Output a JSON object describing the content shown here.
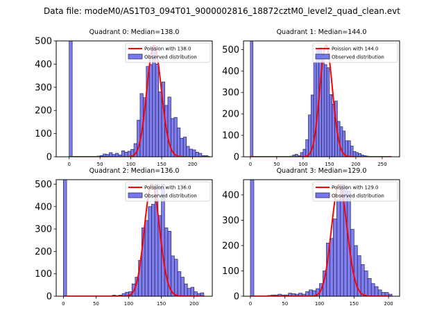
{
  "figure": {
    "suptitle": "Data file: modeM0/AS1T03_094T01_9000002816_18872cztM0_level2_quad_clean.evt"
  },
  "colors": {
    "bar_fill": "#7777ee",
    "bar_edge": "#222255",
    "poisson_line": "#ff0000",
    "axes": "#000000"
  },
  "chart_data": [
    {
      "type": "bar",
      "title": "Quadrant 0: Median=138.0",
      "median": 138.0,
      "xlabel": "",
      "ylabel": "",
      "xlim": [
        -21,
        232
      ],
      "ylim": [
        0,
        500
      ],
      "xticks": [
        0,
        50,
        100,
        150,
        200
      ],
      "yticks": [
        0,
        100,
        200,
        300,
        400,
        500
      ],
      "bin_width": 5,
      "bins": [
        0,
        45,
        50,
        55,
        60,
        65,
        70,
        75,
        80,
        85,
        90,
        95,
        100,
        105,
        110,
        115,
        120,
        125,
        130,
        135,
        140,
        145,
        150,
        155,
        160,
        165,
        170,
        175,
        180,
        185,
        190,
        195,
        200,
        205,
        210,
        215,
        220
      ],
      "counts": [
        600,
        3,
        5,
        12,
        10,
        18,
        10,
        15,
        8,
        26,
        20,
        24,
        32,
        57,
        158,
        273,
        255,
        390,
        398,
        470,
        400,
        280,
        323,
        222,
        258,
        165,
        170,
        125,
        80,
        85,
        45,
        33,
        30,
        20,
        15,
        5,
        5
      ],
      "legend": [
        "Poission with 138.0",
        "Observed distribution"
      ],
      "legend_position": "top-right",
      "poisson_mean": 138.0,
      "poisson_scale": 480,
      "poisson_xmax": 228
    },
    {
      "type": "bar",
      "title": "Quadrant 1: Median=144.0",
      "median": 144.0,
      "xlabel": "",
      "ylabel": "",
      "xlim": [
        -13,
        283
      ],
      "ylim": [
        0,
        540
      ],
      "xticks": [
        0,
        50,
        100,
        150,
        200,
        250
      ],
      "yticks": [
        0,
        100,
        200,
        300,
        400,
        500
      ],
      "bin_width": 5,
      "bins": [
        0,
        75,
        80,
        85,
        90,
        95,
        100,
        105,
        110,
        115,
        120,
        125,
        130,
        135,
        140,
        145,
        150,
        155,
        160,
        165,
        170,
        175,
        180,
        185,
        190,
        195,
        200,
        205,
        210,
        215,
        220,
        225,
        230
      ],
      "counts": [
        600,
        3,
        8,
        12,
        5,
        20,
        35,
        80,
        195,
        288,
        440,
        500,
        510,
        480,
        430,
        415,
        290,
        245,
        260,
        165,
        140,
        120,
        75,
        75,
        50,
        25,
        20,
        15,
        8,
        5,
        3,
        2,
        2
      ],
      "legend": [
        "Poission with 144.0",
        "Observed distribution"
      ],
      "legend_position": "top-right",
      "poisson_mean": 144.0,
      "poisson_scale": 520,
      "poisson_xmax": 268
    },
    {
      "type": "bar",
      "title": "Quadrant 2: Median=136.0",
      "median": 136.0,
      "xlabel": "",
      "ylabel": "",
      "xlim": [
        -11,
        228
      ],
      "ylim": [
        0,
        520
      ],
      "xticks": [
        0,
        50,
        100,
        150,
        200
      ],
      "yticks": [
        0,
        100,
        200,
        300,
        400,
        500
      ],
      "bin_width": 5,
      "bins": [
        0,
        75,
        80,
        85,
        90,
        95,
        100,
        105,
        110,
        115,
        120,
        125,
        130,
        135,
        140,
        145,
        150,
        155,
        160,
        165,
        170,
        175,
        180,
        185,
        190,
        195,
        200,
        205,
        210
      ],
      "counts": [
        600,
        5,
        3,
        5,
        12,
        18,
        20,
        55,
        85,
        160,
        305,
        338,
        400,
        410,
        500,
        360,
        500,
        305,
        290,
        180,
        165,
        110,
        85,
        55,
        35,
        40,
        20,
        12,
        15
      ],
      "legend": [
        "Poission with 136.0",
        "Observed distribution"
      ],
      "legend_position": "top-right",
      "poisson_mean": 136.0,
      "poisson_scale": 500,
      "poisson_xmax": 216
    },
    {
      "type": "bar",
      "title": "Quadrant 3: Median=129.0",
      "median": 129.0,
      "xlabel": "",
      "ylabel": "",
      "xlim": [
        -10,
        216
      ],
      "ylim": [
        0,
        460
      ],
      "xticks": [
        0,
        50,
        100,
        150,
        200
      ],
      "yticks": [
        0,
        100,
        200,
        300,
        400
      ],
      "bin_width": 5,
      "bins": [
        0,
        25,
        30,
        35,
        40,
        45,
        50,
        55,
        60,
        65,
        70,
        75,
        80,
        85,
        90,
        95,
        100,
        105,
        110,
        115,
        120,
        125,
        130,
        135,
        140,
        145,
        150,
        155,
        160,
        165,
        170,
        175,
        180,
        185,
        190,
        195,
        200
      ],
      "counts": [
        600,
        3,
        5,
        5,
        8,
        5,
        5,
        12,
        10,
        8,
        12,
        8,
        18,
        25,
        22,
        30,
        50,
        100,
        210,
        228,
        305,
        380,
        440,
        435,
        415,
        264,
        200,
        160,
        125,
        100,
        70,
        50,
        38,
        25,
        15,
        15,
        8
      ],
      "legend": [
        "Poission with 129.0",
        "Observed distribution"
      ],
      "legend_position": "top-right",
      "poisson_mean": 129.0,
      "poisson_scale": 440,
      "poisson_xmax": 204
    }
  ]
}
